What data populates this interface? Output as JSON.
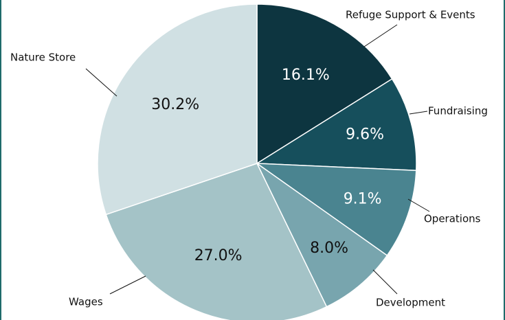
{
  "chart_data": {
    "type": "pie",
    "categories": [
      "Refuge Support & Events",
      "Fundraising",
      "Operations",
      "Development",
      "Wages",
      "Nature Store"
    ],
    "values": [
      16.1,
      9.6,
      9.1,
      8.0,
      27.0,
      30.2
    ],
    "value_labels": [
      "16.1%",
      "9.6%",
      "9.1%",
      "8.0%",
      "27.0%",
      "30.2%"
    ],
    "colors": [
      "#0d3540",
      "#164f5c",
      "#4a8490",
      "#78a5ae",
      "#a4c3c7",
      "#d0e0e3"
    ]
  }
}
